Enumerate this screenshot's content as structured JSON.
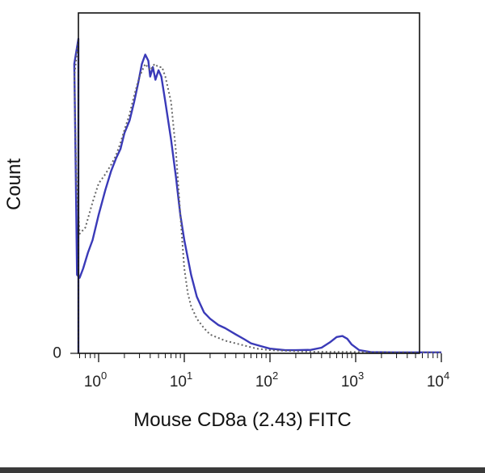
{
  "chart_data": {
    "type": "line",
    "title": "",
    "xlabel": "Mouse CD8a (2.43) FITC",
    "ylabel": "Count",
    "xscale": "log",
    "xlim": [
      0.5,
      10000
    ],
    "ylim": [
      0,
      100
    ],
    "grid": false,
    "legend": "none",
    "x_ticks": [
      {
        "base": "10",
        "exp": "0",
        "value": 1
      },
      {
        "base": "10",
        "exp": "1",
        "value": 10
      },
      {
        "base": "10",
        "exp": "2",
        "value": 100
      },
      {
        "base": "10",
        "exp": "3",
        "value": 1000
      },
      {
        "base": "10",
        "exp": "4",
        "value": 10000
      }
    ],
    "y_ticks": [
      {
        "label": "0",
        "value": 0
      }
    ],
    "series": [
      {
        "color": "#3a3ab8",
        "style": "solid",
        "points": [
          [
            0.5,
            0
          ],
          [
            0.5,
            100
          ],
          [
            0.52,
            92
          ],
          [
            0.54,
            60
          ],
          [
            0.56,
            25
          ],
          [
            0.6,
            24
          ],
          [
            0.66,
            27
          ],
          [
            0.75,
            32
          ],
          [
            0.85,
            36
          ],
          [
            1.0,
            44
          ],
          [
            1.2,
            52
          ],
          [
            1.4,
            58
          ],
          [
            1.6,
            62
          ],
          [
            1.8,
            65
          ],
          [
            2.0,
            70
          ],
          [
            2.3,
            74
          ],
          [
            2.6,
            80
          ],
          [
            2.9,
            86
          ],
          [
            3.2,
            92
          ],
          [
            3.5,
            95
          ],
          [
            3.8,
            93
          ],
          [
            4.0,
            88
          ],
          [
            4.3,
            91
          ],
          [
            4.6,
            87
          ],
          [
            5.0,
            90
          ],
          [
            5.4,
            88
          ],
          [
            6.0,
            80
          ],
          [
            7.0,
            68
          ],
          [
            8.0,
            56
          ],
          [
            9.0,
            44
          ],
          [
            10.0,
            36
          ],
          [
            12.0,
            25
          ],
          [
            14.0,
            18
          ],
          [
            17.0,
            13
          ],
          [
            20.0,
            11
          ],
          [
            25.0,
            9
          ],
          [
            30.0,
            8
          ],
          [
            40.0,
            6
          ],
          [
            50.0,
            4.5
          ],
          [
            60.0,
            3.2
          ],
          [
            80.0,
            2.2
          ],
          [
            100.0,
            1.5
          ],
          [
            150.0,
            1
          ],
          [
            200.0,
            1
          ],
          [
            300.0,
            1.1
          ],
          [
            400.0,
            1.8
          ],
          [
            500.0,
            3.5
          ],
          [
            600.0,
            5.2
          ],
          [
            700.0,
            5.5
          ],
          [
            800.0,
            4.6
          ],
          [
            900.0,
            2.8
          ],
          [
            1100.0,
            1
          ],
          [
            1500.0,
            0.4
          ],
          [
            3000.0,
            0.3
          ],
          [
            10000.0,
            0.3
          ]
        ]
      },
      {
        "color": "#666666",
        "style": "dotted",
        "points": [
          [
            0.5,
            0
          ],
          [
            0.5,
            100
          ],
          [
            0.52,
            88
          ],
          [
            0.55,
            55
          ],
          [
            0.6,
            38
          ],
          [
            0.7,
            40
          ],
          [
            0.85,
            48
          ],
          [
            1.0,
            54
          ],
          [
            1.2,
            57
          ],
          [
            1.4,
            60
          ],
          [
            1.6,
            63
          ],
          [
            1.8,
            67
          ],
          [
            2.0,
            71
          ],
          [
            2.3,
            76
          ],
          [
            2.6,
            82
          ],
          [
            3.0,
            88
          ],
          [
            3.5,
            92
          ],
          [
            4.0,
            90
          ],
          [
            4.5,
            92
          ],
          [
            5.0,
            91
          ],
          [
            5.5,
            91
          ],
          [
            6.0,
            88
          ],
          [
            7.0,
            80
          ],
          [
            8.0,
            64
          ],
          [
            9.0,
            44
          ],
          [
            10.0,
            27
          ],
          [
            11.0,
            19
          ],
          [
            12.0,
            15
          ],
          [
            14.0,
            11
          ],
          [
            17.0,
            8
          ],
          [
            20.0,
            6
          ],
          [
            30.0,
            4
          ],
          [
            50.0,
            2.5
          ],
          [
            70.0,
            1.5
          ],
          [
            100.0,
            1
          ],
          [
            300.0,
            0.5
          ],
          [
            10000.0,
            0.3
          ]
        ]
      }
    ]
  }
}
